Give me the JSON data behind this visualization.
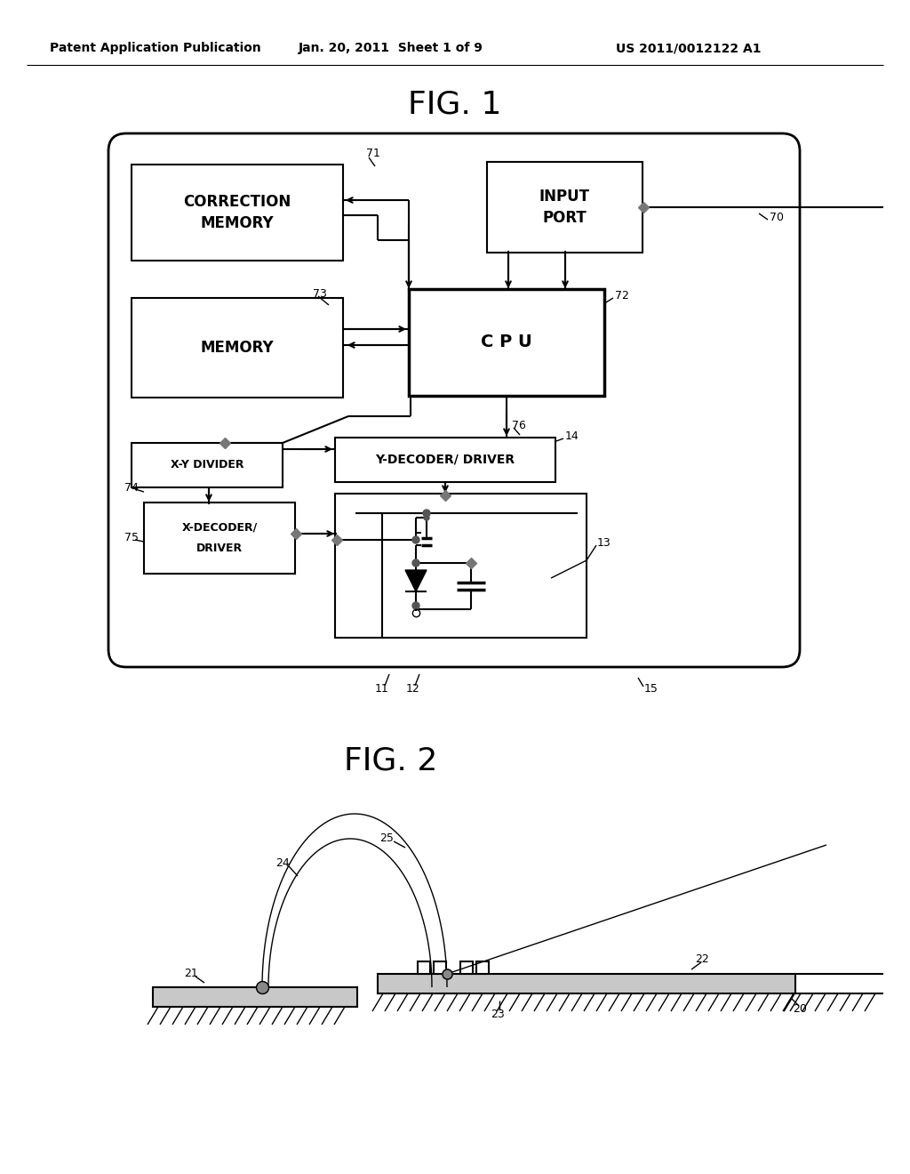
{
  "header_left": "Patent Application Publication",
  "header_mid": "Jan. 20, 2011  Sheet 1 of 9",
  "header_right": "US 2011/0012122 A1",
  "fig1_label": "FIG. 1",
  "fig2_label": "FIG. 2",
  "bg": "#ffffff"
}
